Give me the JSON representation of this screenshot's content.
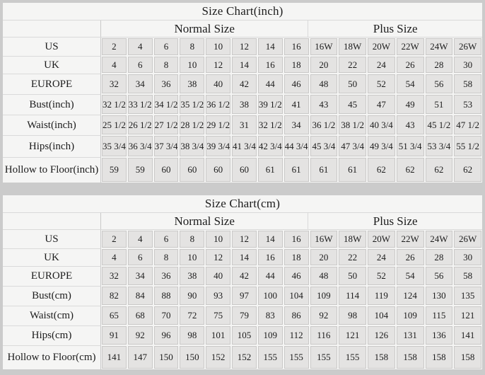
{
  "colors": {
    "page_bg": "#cbcbcb",
    "panel_bg": "#f5f5f4",
    "cell_bg": "#e4e3e2",
    "cell_border": "#cac9c8",
    "separator_line": "#d9d9d9",
    "text": "#1c1c1c"
  },
  "chart_data": [
    {
      "type": "table",
      "title": "Size Chart(inch)",
      "column_groups": [
        {
          "label": "Normal Size",
          "columns": 8
        },
        {
          "label": "Plus Size",
          "columns": 6
        }
      ],
      "rows": [
        {
          "label": "US",
          "values": [
            "2",
            "4",
            "6",
            "8",
            "10",
            "12",
            "14",
            "16",
            "16W",
            "18W",
            "20W",
            "22W",
            "24W",
            "26W"
          ]
        },
        {
          "label": "UK",
          "values": [
            "4",
            "6",
            "8",
            "10",
            "12",
            "14",
            "16",
            "18",
            "20",
            "22",
            "24",
            "26",
            "28",
            "30"
          ]
        },
        {
          "label": "EUROPE",
          "values": [
            "32",
            "34",
            "36",
            "38",
            "40",
            "42",
            "44",
            "46",
            "48",
            "50",
            "52",
            "54",
            "56",
            "58"
          ]
        },
        {
          "label": "Bust(inch)",
          "values": [
            "32 1/2",
            "33 1/2",
            "34 1/2",
            "35 1/2",
            "36 1/2",
            "38",
            "39 1/2",
            "41",
            "43",
            "45",
            "47",
            "49",
            "51",
            "53"
          ]
        },
        {
          "label": "Waist(inch)",
          "values": [
            "25 1/2",
            "26 1/2",
            "27 1/2",
            "28 1/2",
            "29 1/2",
            "31",
            "32 1/2",
            "34",
            "36 1/2",
            "38 1/2",
            "40 3/4",
            "43",
            "45 1/2",
            "47 1/2"
          ]
        },
        {
          "label": "Hips(inch)",
          "values": [
            "35 3/4",
            "36 3/4",
            "37 3/4",
            "38 3/4",
            "39 3/4",
            "41 3/4",
            "42 3/4",
            "44 3/4",
            "45 3/4",
            "47 3/4",
            "49 3/4",
            "51 3/4",
            "53 3/4",
            "55 1/2"
          ]
        },
        {
          "label": "Hollow to Floor(inch)",
          "values": [
            "59",
            "59",
            "60",
            "60",
            "60",
            "60",
            "61",
            "61",
            "61",
            "61",
            "62",
            "62",
            "62",
            "62"
          ]
        }
      ]
    },
    {
      "type": "table",
      "title": "Size Chart(cm)",
      "column_groups": [
        {
          "label": "Normal Size",
          "columns": 8
        },
        {
          "label": "Plus Size",
          "columns": 6
        }
      ],
      "rows": [
        {
          "label": "US",
          "values": [
            "2",
            "4",
            "6",
            "8",
            "10",
            "12",
            "14",
            "16",
            "16W",
            "18W",
            "20W",
            "22W",
            "24W",
            "26W"
          ]
        },
        {
          "label": "UK",
          "values": [
            "4",
            "6",
            "8",
            "10",
            "12",
            "14",
            "16",
            "18",
            "20",
            "22",
            "24",
            "26",
            "28",
            "30"
          ]
        },
        {
          "label": "EUROPE",
          "values": [
            "32",
            "34",
            "36",
            "38",
            "40",
            "42",
            "44",
            "46",
            "48",
            "50",
            "52",
            "54",
            "56",
            "58"
          ]
        },
        {
          "label": "Bust(cm)",
          "values": [
            "82",
            "84",
            "88",
            "90",
            "93",
            "97",
            "100",
            "104",
            "109",
            "114",
            "119",
            "124",
            "130",
            "135"
          ]
        },
        {
          "label": "Waist(cm)",
          "values": [
            "65",
            "68",
            "70",
            "72",
            "75",
            "79",
            "83",
            "86",
            "92",
            "98",
            "104",
            "109",
            "115",
            "121"
          ]
        },
        {
          "label": "Hips(cm)",
          "values": [
            "91",
            "92",
            "96",
            "98",
            "101",
            "105",
            "109",
            "112",
            "116",
            "121",
            "126",
            "131",
            "136",
            "141"
          ]
        },
        {
          "label": "Hollow to Floor(cm)",
          "values": [
            "141",
            "147",
            "150",
            "150",
            "152",
            "152",
            "155",
            "155",
            "155",
            "155",
            "158",
            "158",
            "158",
            "158"
          ]
        }
      ]
    }
  ]
}
